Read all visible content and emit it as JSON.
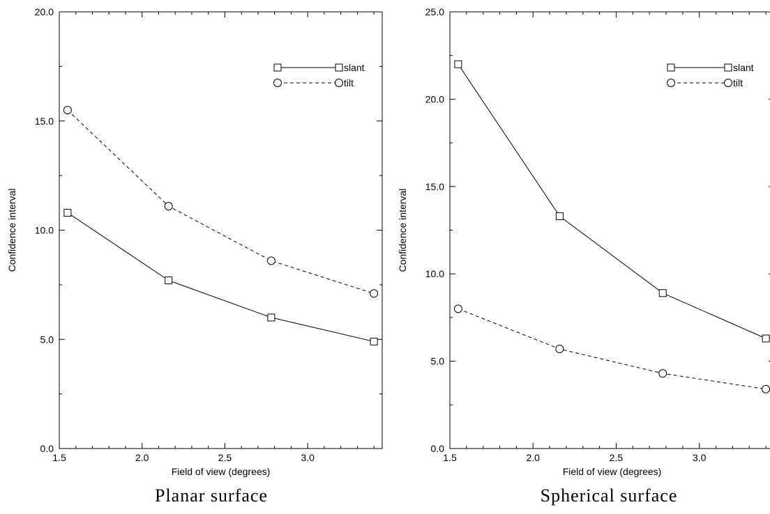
{
  "chart_data": [
    {
      "type": "line",
      "caption": "Planar surface",
      "xlabel": "Field of view (degrees)",
      "ylabel": "Confidence interval",
      "xlim": [
        1.5,
        3.45
      ],
      "ylim": [
        0,
        20
      ],
      "x_ticks": [
        "1.5",
        "2.0",
        "2.5",
        "3.0"
      ],
      "x_tick_values": [
        1.5,
        2.0,
        2.5,
        3.0
      ],
      "y_ticks": [
        "0.0",
        "5.0",
        "10.0",
        "15.0",
        "20.0"
      ],
      "y_tick_values": [
        0,
        5,
        10,
        15,
        20
      ],
      "x": [
        1.55,
        2.16,
        2.78,
        3.4
      ],
      "legend_position": "top-right",
      "series": [
        {
          "name": "slant",
          "values": [
            10.8,
            7.7,
            6.0,
            4.9
          ],
          "marker": "square",
          "line": "solid"
        },
        {
          "name": "tilt",
          "values": [
            15.5,
            11.1,
            8.6,
            7.1
          ],
          "marker": "circle",
          "line": "dashed"
        }
      ]
    },
    {
      "type": "line",
      "caption": "Spherical surface",
      "xlabel": "Field of view (degrees)",
      "ylabel": "Confidence interval",
      "xlim": [
        1.5,
        3.45
      ],
      "ylim": [
        0,
        25
      ],
      "x_ticks": [
        "1.5",
        "2.0",
        "2.5",
        "3.0"
      ],
      "x_tick_values": [
        1.5,
        2.0,
        2.5,
        3.0
      ],
      "y_ticks": [
        "0.0",
        "5.0",
        "10.0",
        "15.0",
        "20.0",
        "25.0"
      ],
      "y_tick_values": [
        0,
        5,
        10,
        15,
        20,
        25
      ],
      "x": [
        1.55,
        2.16,
        2.78,
        3.4
      ],
      "legend_position": "top-right",
      "series": [
        {
          "name": "slant",
          "values": [
            22.0,
            13.3,
            8.9,
            6.3
          ],
          "marker": "square",
          "line": "solid"
        },
        {
          "name": "tilt",
          "values": [
            8.0,
            5.7,
            4.3,
            3.4
          ],
          "marker": "circle",
          "line": "dashed"
        }
      ]
    }
  ]
}
